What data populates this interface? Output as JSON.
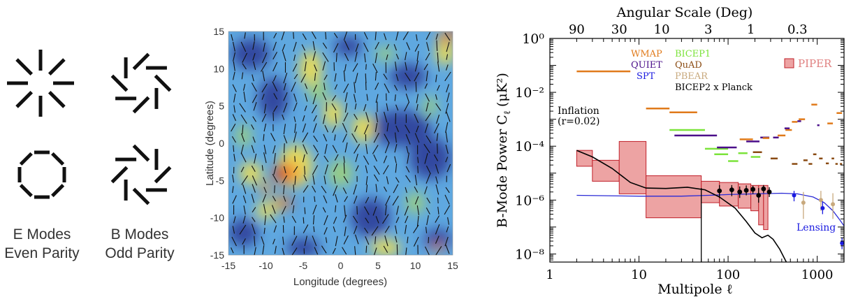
{
  "modes": {
    "e_label": "E Modes",
    "e_sub": "Even Parity",
    "b_label": "B Modes",
    "b_sub": "Odd Parity"
  },
  "map": {
    "xlabel": "Longitude (degrees)",
    "ylabel": "Latitude (degrees)",
    "xticks": [
      -15,
      -10,
      -5,
      0,
      5,
      10,
      15
    ],
    "yticks": [
      15,
      10,
      5,
      0,
      -5,
      -10,
      -15
    ]
  },
  "chart_data": {
    "type": "scatter",
    "title": "Angular Scale (Deg)",
    "xlabel": "Multipole ℓ",
    "ylabel": "B-Mode Power C",
    "ylabel_sub": "ℓ",
    "ylabel_units": "(μK²)",
    "x_scale": "log",
    "y_scale": "log",
    "xlim": [
      1,
      2000
    ],
    "ylim": [
      5e-09,
      1
    ],
    "xtick_labels": [
      "1",
      "10",
      "100",
      "1000"
    ],
    "ytick_labels": [
      "10⁰",
      "10⁻²",
      "10⁻⁴",
      "10⁻⁶",
      "10⁻⁸"
    ],
    "top_axis_labels": [
      "90",
      "30",
      "10",
      "3",
      "1",
      "0.3"
    ],
    "top_axis_degrees": [
      90,
      30,
      10,
      3,
      1,
      0.3
    ],
    "legend": [
      {
        "name": "WMAP",
        "color": "#e07a1a"
      },
      {
        "name": "QUIET",
        "color": "#4b0f8a"
      },
      {
        "name": "SPT",
        "color": "#1a1ae0"
      },
      {
        "name": "BICEP1",
        "color": "#7be33a"
      },
      {
        "name": "QuAD",
        "color": "#8a4b12"
      },
      {
        "name": "PBEAR",
        "color": "#c8a97d"
      },
      {
        "name": "BICEP2 x Planck",
        "color": "#000000"
      }
    ],
    "piper_label": "PIPER",
    "piper_color": "#e08080",
    "inflation_label": "Inflation",
    "inflation_r": "(r=0.02)",
    "lensing_label": "Lensing",
    "upper_limits": [
      {
        "series": "WMAP",
        "x": [
          2,
          8
        ],
        "y": 0.06
      },
      {
        "series": "WMAP",
        "x": [
          12,
          22
        ],
        "y": 0.0025
      },
      {
        "series": "WMAP",
        "x": [
          22,
          45
        ],
        "y": 0.0018
      },
      {
        "series": "BICEP1",
        "x": [
          22,
          55
        ],
        "y": 0.0004
      },
      {
        "series": "QUIET",
        "x": [
          25,
          75
        ],
        "y": 0.00025
      },
      {
        "series": "BICEP1",
        "x": [
          55,
          100
        ],
        "y": 8e-05
      },
      {
        "series": "BICEP1",
        "x": [
          70,
          100
        ],
        "y": 5e-05
      },
      {
        "series": "BICEP1",
        "x": [
          100,
          130
        ],
        "y": 2.8e-05
      },
      {
        "series": "QUIET",
        "x": [
          75,
          125
        ],
        "y": 9e-05
      },
      {
        "series": "BICEP1",
        "x": [
          130,
          165
        ],
        "y": 5.5e-05
      },
      {
        "series": "WMAP",
        "x": [
          135,
          190
        ],
        "y": 0.00018
      },
      {
        "series": "QUIET",
        "x": [
          160,
          225
        ],
        "y": 0.00015
      },
      {
        "series": "BICEP1",
        "x": [
          180,
          230
        ],
        "y": 4e-05
      },
      {
        "series": "QuAD",
        "x": [
          190,
          240
        ],
        "y": 6e-05
      },
      {
        "series": "QUIET",
        "x": [
          230,
          290
        ],
        "y": 0.00021
      },
      {
        "series": "WMAP",
        "x": [
          245,
          290
        ],
        "y": 0.0002
      },
      {
        "series": "QuAD",
        "x": [
          300,
          360
        ],
        "y": 3.5e-05
      },
      {
        "series": "QUIET",
        "x": [
          320,
          370
        ],
        "y": 0.00021
      },
      {
        "series": "WMAP",
        "x": [
          360,
          440
        ],
        "y": 0.00025
      },
      {
        "series": "WMAP",
        "x": [
          440,
          520
        ],
        "y": 0.0004
      },
      {
        "series": "QUIET",
        "x": [
          430,
          490
        ],
        "y": 0.00046
      },
      {
        "series": "QuAD",
        "x": [
          520,
          600
        ],
        "y": 2.2e-05
      },
      {
        "series": "WMAP",
        "x": [
          520,
          600
        ],
        "y": 0.0008
      },
      {
        "series": "QUIET",
        "x": [
          600,
          660
        ],
        "y": 0.00085
      },
      {
        "series": "WMAP",
        "x": [
          620,
          730
        ],
        "y": 0.001
      },
      {
        "series": "QuAD",
        "x": [
          700,
          780
        ],
        "y": 3e-05
      },
      {
        "series": "QuAD",
        "x": [
          800,
          880
        ],
        "y": 2.2e-05
      },
      {
        "series": "WMAP",
        "x": [
          860,
          1000
        ],
        "y": 0.0035
      },
      {
        "series": "QuAD",
        "x": [
          900,
          980
        ],
        "y": 5e-05
      },
      {
        "series": "QUIET",
        "x": [
          1000,
          1060
        ],
        "y": 0.0006
      },
      {
        "series": "QuAD",
        "x": [
          1050,
          1150
        ],
        "y": 3.5e-05
      },
      {
        "series": "QuAD",
        "x": [
          1250,
          1350
        ],
        "y": 2.3e-05
      },
      {
        "series": "WMAP",
        "x": [
          1300,
          1500
        ],
        "y": 0.0007
      },
      {
        "series": "QuAD",
        "x": [
          1450,
          1550
        ],
        "y": 3.5e-05
      },
      {
        "series": "QuAD",
        "x": [
          1600,
          1700
        ],
        "y": 2.2e-05
      },
      {
        "series": "WMAP",
        "x": [
          1650,
          1900
        ],
        "y": 0.0017
      },
      {
        "series": "QuAD",
        "x": [
          1800,
          1900
        ],
        "y": 2.2e-05
      }
    ],
    "piper_boxes": [
      {
        "x": [
          2,
          3
        ],
        "y": [
          1.8e-05,
          7e-05
        ]
      },
      {
        "x": [
          3,
          6
        ],
        "y": [
          5e-06,
          3e-05
        ]
      },
      {
        "x": [
          6,
          12
        ],
        "y": [
          1.7e-06,
          0.00015
        ]
      },
      {
        "x": [
          12,
          50
        ],
        "y": [
          2.2e-07,
          8e-06
        ]
      },
      {
        "x": [
          50,
          80
        ],
        "y": [
          8e-07,
          5e-06
        ]
      },
      {
        "x": [
          80,
          130
        ],
        "y": [
          6e-07,
          4.5e-06
        ]
      },
      {
        "x": [
          130,
          180
        ],
        "y": [
          5e-07,
          4e-06
        ]
      },
      {
        "x": [
          180,
          220
        ],
        "y": [
          4e-07,
          3.5e-06
        ]
      },
      {
        "x": [
          220,
          250
        ],
        "y": [
          1.2e-07,
          3.5e-06
        ]
      },
      {
        "x": [
          250,
          280
        ],
        "y": [
          8e-08,
          3.5e-06
        ]
      }
    ],
    "bicep2_planck_points": [
      {
        "x": 80,
        "y": 2.2e-06,
        "lo": 1.2e-06,
        "hi": 3.6e-06
      },
      {
        "x": 110,
        "y": 2.4e-06,
        "lo": 1.4e-06,
        "hi": 3.6e-06
      },
      {
        "x": 135,
        "y": 2e-06,
        "lo": 1.2e-06,
        "hi": 3.2e-06
      },
      {
        "x": 160,
        "y": 2.3e-06,
        "lo": 1.5e-06,
        "hi": 3.5e-06
      },
      {
        "x": 190,
        "y": 2.5e-06,
        "lo": 1.7e-06,
        "hi": 3.4e-06
      },
      {
        "x": 220,
        "y": 1.5e-06,
        "lo": 8e-07,
        "hi": 2.8e-06
      },
      {
        "x": 250,
        "y": 2.6e-06,
        "lo": 1.8e-06,
        "hi": 3.6e-06
      },
      {
        "x": 290,
        "y": 2e-06,
        "lo": 1.3e-06,
        "hi": 3e-06
      }
    ],
    "spt_points": [
      {
        "x": 550,
        "y": 1.5e-06,
        "lo": 9e-07,
        "hi": 2.2e-06
      },
      {
        "x": 1150,
        "y": 5e-07,
        "lo": 3e-07,
        "hi": 9e-07
      },
      {
        "x": 1900,
        "y": 2.5e-08,
        "lo": 1.5e-08,
        "hi": 4e-08
      }
    ],
    "pbear_points": [
      {
        "x": 700,
        "y": 8e-07,
        "lo": 2e-07,
        "hi": 2e-06
      },
      {
        "x": 1100,
        "y": 1e-06,
        "lo": 4e-07,
        "hi": 2.2e-06
      },
      {
        "x": 1500,
        "y": 7e-07,
        "lo": 2e-07,
        "hi": 1.8e-06
      }
    ],
    "inflation_curve": [
      [
        2,
        7e-05
      ],
      [
        3,
        4e-05
      ],
      [
        5,
        1.5e-05
      ],
      [
        8,
        4.5e-06
      ],
      [
        12,
        2.8e-06
      ],
      [
        20,
        2.7e-06
      ],
      [
        35,
        3e-06
      ],
      [
        55,
        2.4e-06
      ],
      [
        80,
        1.3e-06
      ],
      [
        120,
        5e-07
      ],
      [
        160,
        1.6e-07
      ],
      [
        200,
        6e-08
      ],
      [
        240,
        4e-08
      ],
      [
        280,
        5e-08
      ],
      [
        320,
        3.5e-08
      ],
      [
        380,
        1.5e-08
      ],
      [
        450,
        5e-09
      ]
    ],
    "lensing_curve": [
      [
        2,
        1.5e-06
      ],
      [
        10,
        1.4e-06
      ],
      [
        30,
        1.4e-06
      ],
      [
        60,
        1.5e-06
      ],
      [
        100,
        1.6e-06
      ],
      [
        200,
        1.7e-06
      ],
      [
        400,
        1.8e-06
      ],
      [
        600,
        1.7e-06
      ],
      [
        900,
        1.3e-06
      ],
      [
        1200,
        8e-07
      ],
      [
        1500,
        4e-07
      ],
      [
        1800,
        1.8e-07
      ],
      [
        2000,
        1.1e-07
      ]
    ]
  }
}
